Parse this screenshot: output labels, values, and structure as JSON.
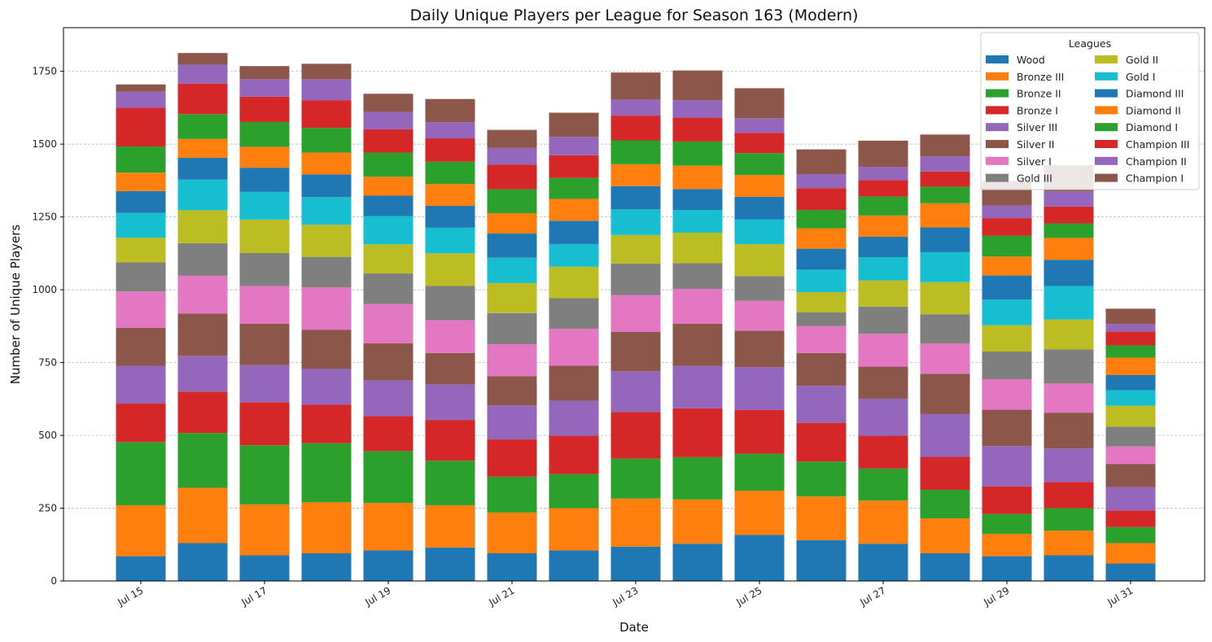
{
  "chart_data": {
    "type": "bar",
    "stacked": true,
    "title": "Daily Unique Players per League for Season 163 (Modern)",
    "xlabel": "Date",
    "ylabel": "Number of Unique Players",
    "ylim": [
      0,
      1900
    ],
    "yticks": [
      0,
      250,
      500,
      750,
      1000,
      1250,
      1500,
      1750
    ],
    "grid": "y-dashed",
    "categories": [
      "Jul 15",
      "Jul 16",
      "Jul 17",
      "Jul 18",
      "Jul 19",
      "Jul 20",
      "Jul 21",
      "Jul 22",
      "Jul 23",
      "Jul 24",
      "Jul 25",
      "Jul 26",
      "Jul 27",
      "Jul 28",
      "Jul 29",
      "Jul 30",
      "Jul 31"
    ],
    "xtick_labels": [
      "Jul 15",
      "Jul 17",
      "Jul 19",
      "Jul 21",
      "Jul 23",
      "Jul 25",
      "Jul 27",
      "Jul 29",
      "Jul 31"
    ],
    "legend": {
      "title": "Leagues",
      "position": "top-right",
      "columns": 2
    },
    "series": [
      {
        "name": "Wood",
        "color": "#1f77b4",
        "values": [
          85,
          130,
          88,
          95,
          105,
          115,
          95,
          105,
          118,
          128,
          158,
          140,
          128,
          95,
          85,
          88,
          60
        ]
      },
      {
        "name": "Bronze III",
        "color": "#ff7f0e",
        "values": [
          175,
          190,
          175,
          175,
          163,
          145,
          140,
          145,
          165,
          152,
          152,
          150,
          148,
          120,
          77,
          85,
          70
        ]
      },
      {
        "name": "Bronze II",
        "color": "#2ca02c",
        "values": [
          217,
          188,
          203,
          203,
          178,
          153,
          123,
          117,
          137,
          145,
          127,
          120,
          110,
          98,
          68,
          77,
          55
        ]
      },
      {
        "name": "Bronze I",
        "color": "#d62728",
        "values": [
          132,
          142,
          148,
          132,
          120,
          140,
          128,
          132,
          160,
          168,
          150,
          133,
          113,
          113,
          95,
          90,
          57
        ]
      },
      {
        "name": "Silver III",
        "color": "#9467bd",
        "values": [
          130,
          123,
          127,
          123,
          123,
          122,
          117,
          120,
          140,
          145,
          147,
          127,
          127,
          147,
          138,
          115,
          80
        ]
      },
      {
        "name": "Silver II",
        "color": "#8c564b",
        "values": [
          130,
          145,
          142,
          135,
          127,
          108,
          100,
          120,
          135,
          145,
          125,
          113,
          110,
          138,
          125,
          123,
          80
        ]
      },
      {
        "name": "Silver I",
        "color": "#e377c2",
        "values": [
          125,
          130,
          130,
          145,
          135,
          112,
          110,
          127,
          127,
          120,
          103,
          92,
          113,
          105,
          105,
          100,
          60
        ]
      },
      {
        "name": "Gold III",
        "color": "#7f7f7f",
        "values": [
          100,
          112,
          113,
          105,
          105,
          118,
          107,
          105,
          108,
          88,
          85,
          47,
          93,
          100,
          95,
          117,
          68
        ]
      },
      {
        "name": "Gold II",
        "color": "#bcbd22",
        "values": [
          85,
          113,
          115,
          110,
          100,
          112,
          103,
          108,
          98,
          105,
          110,
          70,
          90,
          110,
          90,
          103,
          72
        ]
      },
      {
        "name": "Gold I",
        "color": "#17becf",
        "values": [
          85,
          105,
          95,
          95,
          97,
          88,
          87,
          78,
          88,
          78,
          85,
          77,
          80,
          103,
          88,
          115,
          53
        ]
      },
      {
        "name": "Diamond III",
        "color": "#1f77b4",
        "values": [
          75,
          75,
          83,
          78,
          70,
          75,
          83,
          80,
          80,
          72,
          77,
          72,
          70,
          85,
          83,
          90,
          52
        ]
      },
      {
        "name": "Diamond II",
        "color": "#ff7f0e",
        "values": [
          63,
          65,
          72,
          75,
          65,
          75,
          70,
          75,
          75,
          80,
          75,
          70,
          73,
          83,
          65,
          75,
          60
        ]
      },
      {
        "name": "Diamond I",
        "color": "#2ca02c",
        "values": [
          90,
          85,
          85,
          85,
          83,
          77,
          82,
          72,
          82,
          83,
          75,
          63,
          65,
          57,
          72,
          50,
          42
        ]
      },
      {
        "name": "Champion III",
        "color": "#d62728",
        "values": [
          133,
          105,
          87,
          95,
          80,
          80,
          85,
          78,
          85,
          82,
          70,
          75,
          57,
          52,
          60,
          58,
          48
        ]
      },
      {
        "name": "Champion II",
        "color": "#9467bd",
        "values": [
          55,
          65,
          60,
          72,
          60,
          55,
          57,
          63,
          55,
          60,
          50,
          48,
          45,
          52,
          43,
          52,
          25
        ]
      },
      {
        "name": "Champion I",
        "color": "#8c564b",
        "values": [
          25,
          40,
          45,
          53,
          62,
          80,
          62,
          83,
          93,
          102,
          103,
          85,
          90,
          75,
          84,
          90,
          53
        ]
      }
    ]
  }
}
